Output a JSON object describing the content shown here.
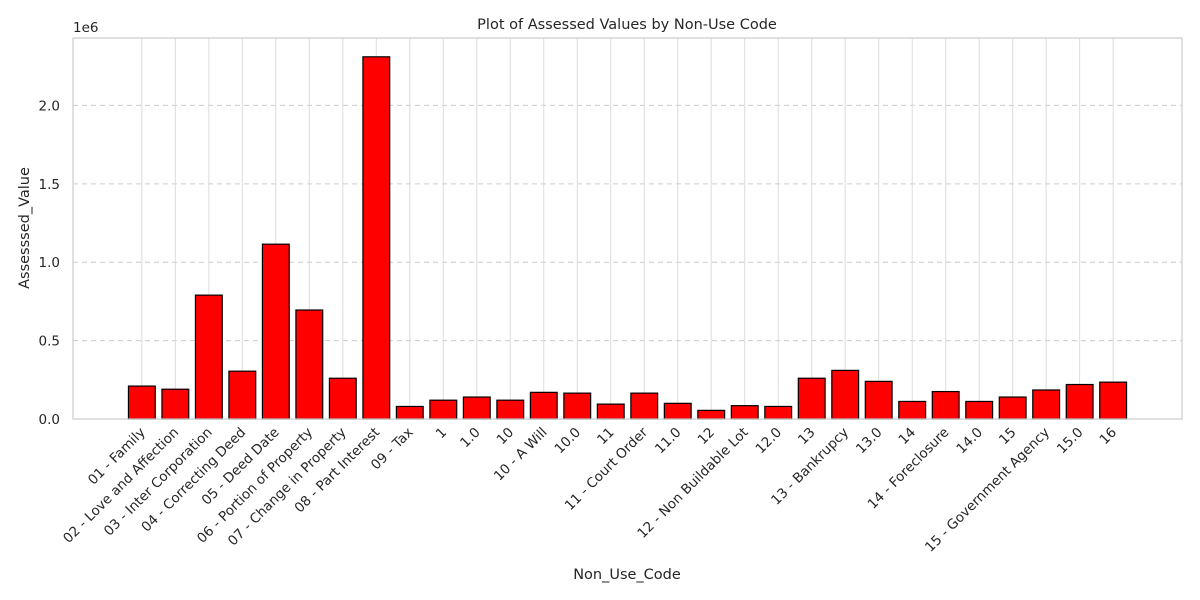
{
  "chart_data": {
    "type": "bar",
    "title": "Plot of Assessed Values by Non-Use Code",
    "xlabel": "Non_Use_Code",
    "ylabel": "Assesssed_Value",
    "y_offset_label": "1e6",
    "ylim": [
      0,
      2.43
    ],
    "y_unit_scale": 1000000,
    "yticks": [
      0.0,
      0.5,
      1.0,
      1.5,
      2.0
    ],
    "ytick_labels": [
      "0.0",
      "0.5",
      "1.0",
      "1.5",
      "2.0"
    ],
    "grid": "on",
    "bar_color": "#ff0000",
    "bar_edge_color": "#000000",
    "categories": [
      "01 - Family",
      "02 - Love and Affection",
      "03 - Inter Corporation",
      "04 - Correcting Deed",
      "05 - Deed Date",
      "06 - Portion of Property",
      "07 - Change in Property",
      "08 - Part Interest",
      "09 - Tax",
      "1",
      "1.0",
      "10",
      "10 - A Will",
      "10.0",
      "11",
      "11 - Court Order",
      "11.0",
      "12",
      "12 - Non Buildable Lot",
      "12.0",
      "13",
      "13 - Bankrupcy",
      "13.0",
      "14",
      "14 - Foreclosure",
      "14.0",
      "15",
      "15 - Government Agency",
      "15.0",
      "16"
    ],
    "values": [
      210000,
      190000,
      790000,
      305000,
      1115000,
      695000,
      260000,
      2310000,
      80000,
      120000,
      140000,
      120000,
      170000,
      165000,
      95000,
      165000,
      100000,
      55000,
      85000,
      80000,
      260000,
      310000,
      240000,
      112000,
      175000,
      112000,
      140000,
      185000,
      220000,
      235000
    ]
  }
}
